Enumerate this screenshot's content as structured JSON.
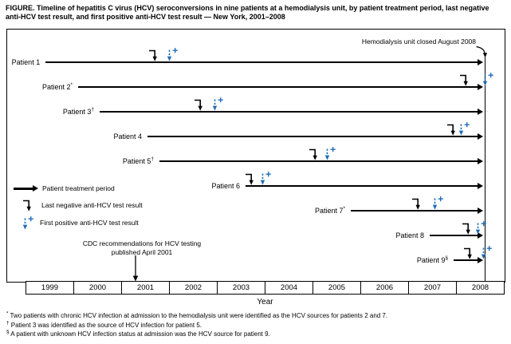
{
  "title": "FIGURE. Timeline of hepatitis C virus (HCV) seroconversions in nine patients at a hemodialysis unit, by patient treatment period, last negative anti-HCV test result, and first positive anti-HCV test result — New York, 2001–2008",
  "colors": {
    "accent_blue": "#1f6cb8",
    "ink": "#000000"
  },
  "annotations": {
    "unit_closed": "Hemodialysis unit closed August 2008",
    "cdc_line1": "CDC recommendations for HCV testing",
    "cdc_line2": "published April 2001"
  },
  "legend": {
    "treatment": "Patient treatment period",
    "last_negative": "Last negative anti-HCV test result",
    "first_positive": "First positive anti-HCV test result"
  },
  "x_axis_label": "Year",
  "footnotes": [
    {
      "symbol": "*",
      "text": "Two patients with chronic HCV infection at admission to the hemodialysis unit were identified as the HCV sources for patients 2 and 7."
    },
    {
      "symbol": "†",
      "text": "Patient 3 was identified as the source of HCV infection for patient 5."
    },
    {
      "symbol": "§",
      "text": "A patient with unknown HCV infection status at admission was the HCV source for patient 9."
    }
  ],
  "chart_data": {
    "type": "timeline",
    "title": "Timeline of HCV seroconversions in nine patients at a hemodialysis unit — New York, 2001–2008",
    "x_axis": {
      "label": "Year",
      "years": [
        "1999",
        "2000",
        "2001",
        "2002",
        "2003",
        "2004",
        "2005",
        "2006",
        "2007",
        "2008"
      ]
    },
    "unit_closed": {
      "label": "Hemodialysis unit closed August 2008",
      "year": 2008.6
    },
    "cdc_recommendation": {
      "label": "CDC recommendations for HCV testing published April 2001",
      "year": 2001.3
    },
    "treatment_arrows_end_year": 2008.6,
    "patients": [
      {
        "label": "Patient 1",
        "sup": "",
        "treatment_start": 1999.42,
        "last_negative": 2001.7,
        "first_positive": 2002.0
      },
      {
        "label": "Patient 2",
        "sup": "*",
        "treatment_start": 2000.1,
        "last_negative": 2008.2,
        "first_positive": 2008.6
      },
      {
        "label": "Patient 3",
        "sup": "†",
        "treatment_start": 2000.55,
        "last_negative": 2002.65,
        "first_positive": 2002.95
      },
      {
        "label": "Patient 4",
        "sup": "",
        "treatment_start": 2001.55,
        "last_negative": 2007.93,
        "first_positive": 2008.1
      },
      {
        "label": "Patient 5",
        "sup": "†",
        "treatment_start": 2001.8,
        "last_negative": 2005.05,
        "first_positive": 2005.3
      },
      {
        "label": "Patient 6",
        "sup": "",
        "treatment_start": 2003.6,
        "last_negative": 2003.72,
        "first_positive": 2003.95
      },
      {
        "label": "Patient 7",
        "sup": "*",
        "treatment_start": 2005.8,
        "last_negative": 2007.2,
        "first_positive": 2007.55
      },
      {
        "label": "Patient 8",
        "sup": "",
        "treatment_start": 2007.45,
        "last_negative": 2008.25,
        "first_positive": 2008.45
      },
      {
        "label": "Patient 9",
        "sup": "§",
        "treatment_start": 2007.95,
        "last_negative": 2008.28,
        "first_positive": 2008.57
      }
    ]
  }
}
